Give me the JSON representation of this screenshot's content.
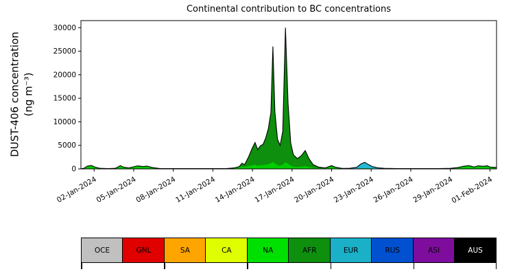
{
  "title": "Continental contribution to BC concentrations",
  "ylabel": {
    "line1": "DUST-406 concentration",
    "line2": "(ng m⁻³)"
  },
  "chart_data": {
    "type": "area",
    "stacked": true,
    "title": "Continental contribution to BC concentrations",
    "xlabel": "",
    "ylabel": "DUST-406 concentration (ng m⁻³)",
    "ylim": [
      0,
      31500
    ],
    "yticks": [
      0,
      5000,
      10000,
      15000,
      20000,
      25000,
      30000
    ],
    "xlim": [
      1,
      32.5
    ],
    "xticks": [
      {
        "x": 2,
        "label": "02-Jan-2024"
      },
      {
        "x": 5,
        "label": "05-Jan-2024"
      },
      {
        "x": 8,
        "label": "08-Jan-2024"
      },
      {
        "x": 11,
        "label": "11-Jan-2024"
      },
      {
        "x": 14,
        "label": "14-Jan-2024"
      },
      {
        "x": 17,
        "label": "17-Jan-2024"
      },
      {
        "x": 20,
        "label": "20-Jan-2024"
      },
      {
        "x": 23,
        "label": "23-Jan-2024"
      },
      {
        "x": 26,
        "label": "26-Jan-2024"
      },
      {
        "x": 29,
        "label": "29-Jan-2024"
      },
      {
        "x": 32,
        "label": "01-Feb-2024"
      }
    ],
    "series": [
      {
        "name": "NA",
        "color": "#00cc00"
      },
      {
        "name": "AFR",
        "color": "#0e8f0e"
      },
      {
        "name": "EUR",
        "color": "#25b8d5"
      }
    ],
    "outline_color": "#000000",
    "points_format": [
      "day_of_jan_2024",
      "NA",
      "AFR",
      "EUR"
    ],
    "points": [
      [
        1.0,
        50,
        0,
        0
      ],
      [
        1.2,
        100,
        0,
        0
      ],
      [
        1.5,
        500,
        100,
        0
      ],
      [
        1.8,
        650,
        100,
        0
      ],
      [
        2.0,
        400,
        50,
        0
      ],
      [
        2.4,
        150,
        0,
        0
      ],
      [
        3.0,
        60,
        0,
        0
      ],
      [
        3.6,
        120,
        0,
        0
      ],
      [
        4.0,
        600,
        100,
        0
      ],
      [
        4.2,
        350,
        50,
        0
      ],
      [
        4.6,
        200,
        0,
        0
      ],
      [
        5.0,
        350,
        100,
        0
      ],
      [
        5.3,
        550,
        100,
        0
      ],
      [
        5.7,
        400,
        100,
        0
      ],
      [
        6.0,
        500,
        100,
        0
      ],
      [
        6.4,
        250,
        50,
        0
      ],
      [
        7.0,
        80,
        0,
        0
      ],
      [
        8.0,
        60,
        0,
        0
      ],
      [
        9.0,
        60,
        0,
        0
      ],
      [
        10.0,
        60,
        0,
        0
      ],
      [
        11.0,
        60,
        0,
        0
      ],
      [
        12.0,
        80,
        0,
        0
      ],
      [
        12.6,
        150,
        50,
        0
      ],
      [
        13.0,
        300,
        200,
        0
      ],
      [
        13.2,
        500,
        700,
        0
      ],
      [
        13.4,
        400,
        500,
        0
      ],
      [
        13.7,
        600,
        1900,
        0
      ],
      [
        14.0,
        800,
        3700,
        0
      ],
      [
        14.2,
        900,
        4700,
        0
      ],
      [
        14.4,
        700,
        3400,
        0
      ],
      [
        14.6,
        800,
        4100,
        0
      ],
      [
        14.8,
        800,
        4400,
        0
      ],
      [
        15.0,
        900,
        5600,
        0
      ],
      [
        15.2,
        1000,
        7500,
        0
      ],
      [
        15.4,
        1200,
        10800,
        0
      ],
      [
        15.55,
        1500,
        24500,
        0
      ],
      [
        15.7,
        1200,
        11000,
        0
      ],
      [
        15.9,
        800,
        5500,
        0
      ],
      [
        16.1,
        700,
        4300,
        0
      ],
      [
        16.3,
        900,
        7100,
        0
      ],
      [
        16.5,
        1400,
        28600,
        0
      ],
      [
        16.7,
        1100,
        12900,
        0
      ],
      [
        16.9,
        700,
        4800,
        0
      ],
      [
        17.1,
        500,
        2500,
        0
      ],
      [
        17.4,
        400,
        1800,
        0
      ],
      [
        17.7,
        500,
        2300,
        0
      ],
      [
        18.0,
        600,
        3300,
        0
      ],
      [
        18.3,
        400,
        1700,
        0
      ],
      [
        18.6,
        250,
        650,
        0
      ],
      [
        19.0,
        150,
        250,
        0
      ],
      [
        19.5,
        100,
        100,
        0
      ],
      [
        20.0,
        450,
        250,
        0
      ],
      [
        20.3,
        250,
        100,
        0
      ],
      [
        20.8,
        100,
        0,
        0
      ],
      [
        21.4,
        80,
        0,
        50
      ],
      [
        21.9,
        80,
        0,
        250
      ],
      [
        22.2,
        100,
        0,
        900
      ],
      [
        22.5,
        100,
        0,
        1300
      ],
      [
        22.8,
        100,
        0,
        800
      ],
      [
        23.1,
        80,
        0,
        400
      ],
      [
        23.5,
        80,
        0,
        150
      ],
      [
        24.0,
        60,
        0,
        50
      ],
      [
        25.0,
        60,
        0,
        0
      ],
      [
        26.0,
        60,
        0,
        0
      ],
      [
        27.0,
        60,
        0,
        0
      ],
      [
        28.0,
        80,
        0,
        0
      ],
      [
        29.0,
        120,
        0,
        0
      ],
      [
        29.6,
        250,
        50,
        0
      ],
      [
        30.0,
        450,
        100,
        0
      ],
      [
        30.4,
        600,
        100,
        0
      ],
      [
        30.8,
        350,
        50,
        0
      ],
      [
        31.1,
        550,
        100,
        0
      ],
      [
        31.5,
        450,
        100,
        0
      ],
      [
        31.8,
        550,
        100,
        0
      ],
      [
        32.0,
        350,
        50,
        0
      ],
      [
        32.5,
        250,
        50,
        0
      ]
    ],
    "legend_position": "bottom"
  },
  "legend": {
    "items": [
      {
        "label": "OCE",
        "color": "#c0c0c0",
        "text_color": "#000000"
      },
      {
        "label": "GNL",
        "color": "#e00000",
        "text_color": "#000000"
      },
      {
        "label": "SA",
        "color": "#ffa500",
        "text_color": "#000000"
      },
      {
        "label": "CA",
        "color": "#dfff00",
        "text_color": "#000000"
      },
      {
        "label": "NA",
        "color": "#00e000",
        "text_color": "#000000"
      },
      {
        "label": "AFR",
        "color": "#0e8f0e",
        "text_color": "#000000"
      },
      {
        "label": "EUR",
        "color": "#1ab0c8",
        "text_color": "#000000"
      },
      {
        "label": "RUS",
        "color": "#0050d0",
        "text_color": "#000000"
      },
      {
        "label": "ASI",
        "color": "#7e0d9e",
        "text_color": "#000000"
      },
      {
        "label": "AUS",
        "color": "#000000",
        "text_color": "#ffffff"
      }
    ]
  }
}
